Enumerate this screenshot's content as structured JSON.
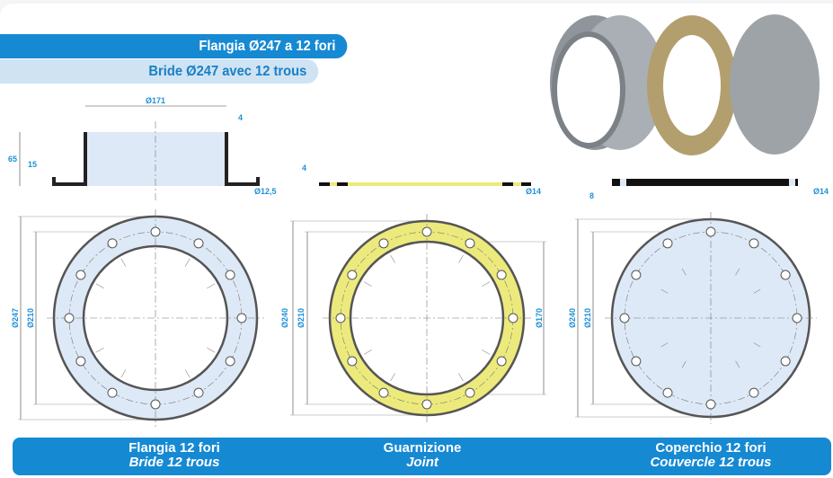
{
  "header": {
    "title_it": "Flangia Ø247 a 12 fori",
    "title_fr": "Bride Ø247 avec 12 trous"
  },
  "flange": {
    "side_dims": {
      "diameter": "Ø171",
      "wall": "4",
      "height": "65",
      "flange_height": "15",
      "hole": "Ø12,5"
    },
    "front_dims": {
      "outer": "Ø247",
      "bolt_circle": "Ø210"
    },
    "label_it": "Flangia 12 fori",
    "label_fr": "Bride 12 trous"
  },
  "gasket": {
    "side_dims": {
      "thickness": "4",
      "hole": "Ø14"
    },
    "front_dims": {
      "outer": "Ø240",
      "bolt_circle": "Ø210",
      "inner": "Ø170"
    },
    "label_it": "Guarnizione",
    "label_fr": "Joint"
  },
  "cover": {
    "side_dims": {
      "thickness": "8",
      "hole": "Ø14"
    },
    "front_dims": {
      "outer": "Ø240",
      "bolt_circle": "Ø210"
    },
    "label_it": "Coperchio 12 fori",
    "label_fr": "Couvercle 12 trous"
  },
  "hole_count": 12,
  "colors": {
    "accent": "#1689d3",
    "flange_fill": "#dde9f6",
    "gasket_fill": "#ecea7c",
    "dimension_text": "#2090d8"
  }
}
